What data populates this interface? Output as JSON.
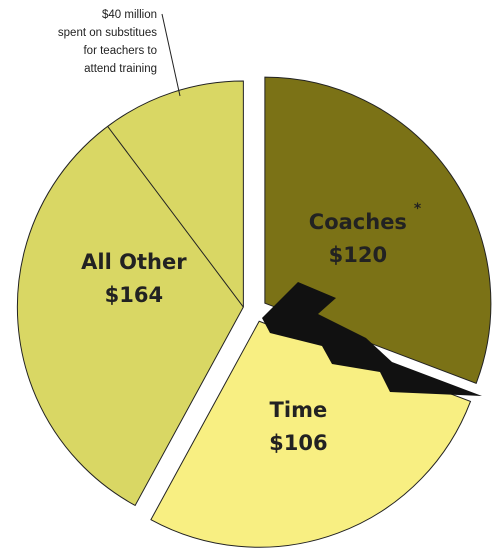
{
  "chart_data": {
    "type": "pie",
    "categories": [
      "Coaches",
      "Time",
      "All Other"
    ],
    "values": [
      120,
      106,
      164
    ],
    "value_labels": [
      "$120",
      "$106",
      "$164"
    ],
    "colors": [
      "#7b7216",
      "#f8ef82",
      "#d9d764"
    ],
    "asterisk": "*",
    "sub_slice": {
      "value": 40,
      "value_label": "$40 million",
      "note": [
        "spent on substitues",
        "for teachers to",
        "attend training"
      ]
    }
  }
}
